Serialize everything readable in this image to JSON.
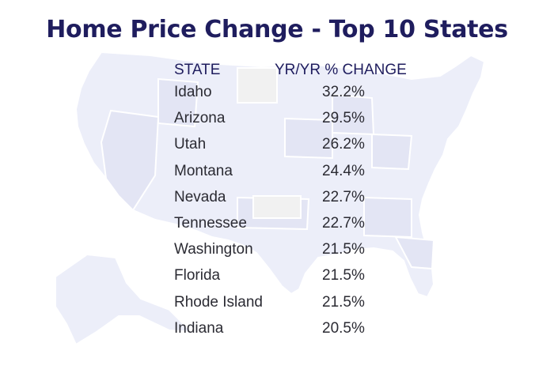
{
  "title": "Home Price Change - Top 10 States",
  "chart_data": {
    "type": "table",
    "title": "Home Price Change - Top 10 States",
    "columns": [
      "STATE",
      "YR/YR % CHANGE"
    ],
    "rows": [
      {
        "state": "Idaho",
        "change": "32.2%"
      },
      {
        "state": "Arizona",
        "change": "29.5%"
      },
      {
        "state": "Utah",
        "change": "26.2%"
      },
      {
        "state": "Montana",
        "change": "24.4%"
      },
      {
        "state": "Nevada",
        "change": "22.7%"
      },
      {
        "state": "Tennessee",
        "change": "22.7%"
      },
      {
        "state": "Washington",
        "change": "21.5%"
      },
      {
        "state": "Florida",
        "change": "21.5%"
      },
      {
        "state": "Rhode Island",
        "change": "21.5%"
      },
      {
        "state": "Indiana",
        "change": "20.5%"
      }
    ]
  },
  "colors": {
    "title": "#1f1d5e",
    "text": "#2b2b33",
    "map_fill": "#eceef9",
    "map_highlight": "#e2e4f3",
    "map_border": "#ffffff"
  }
}
